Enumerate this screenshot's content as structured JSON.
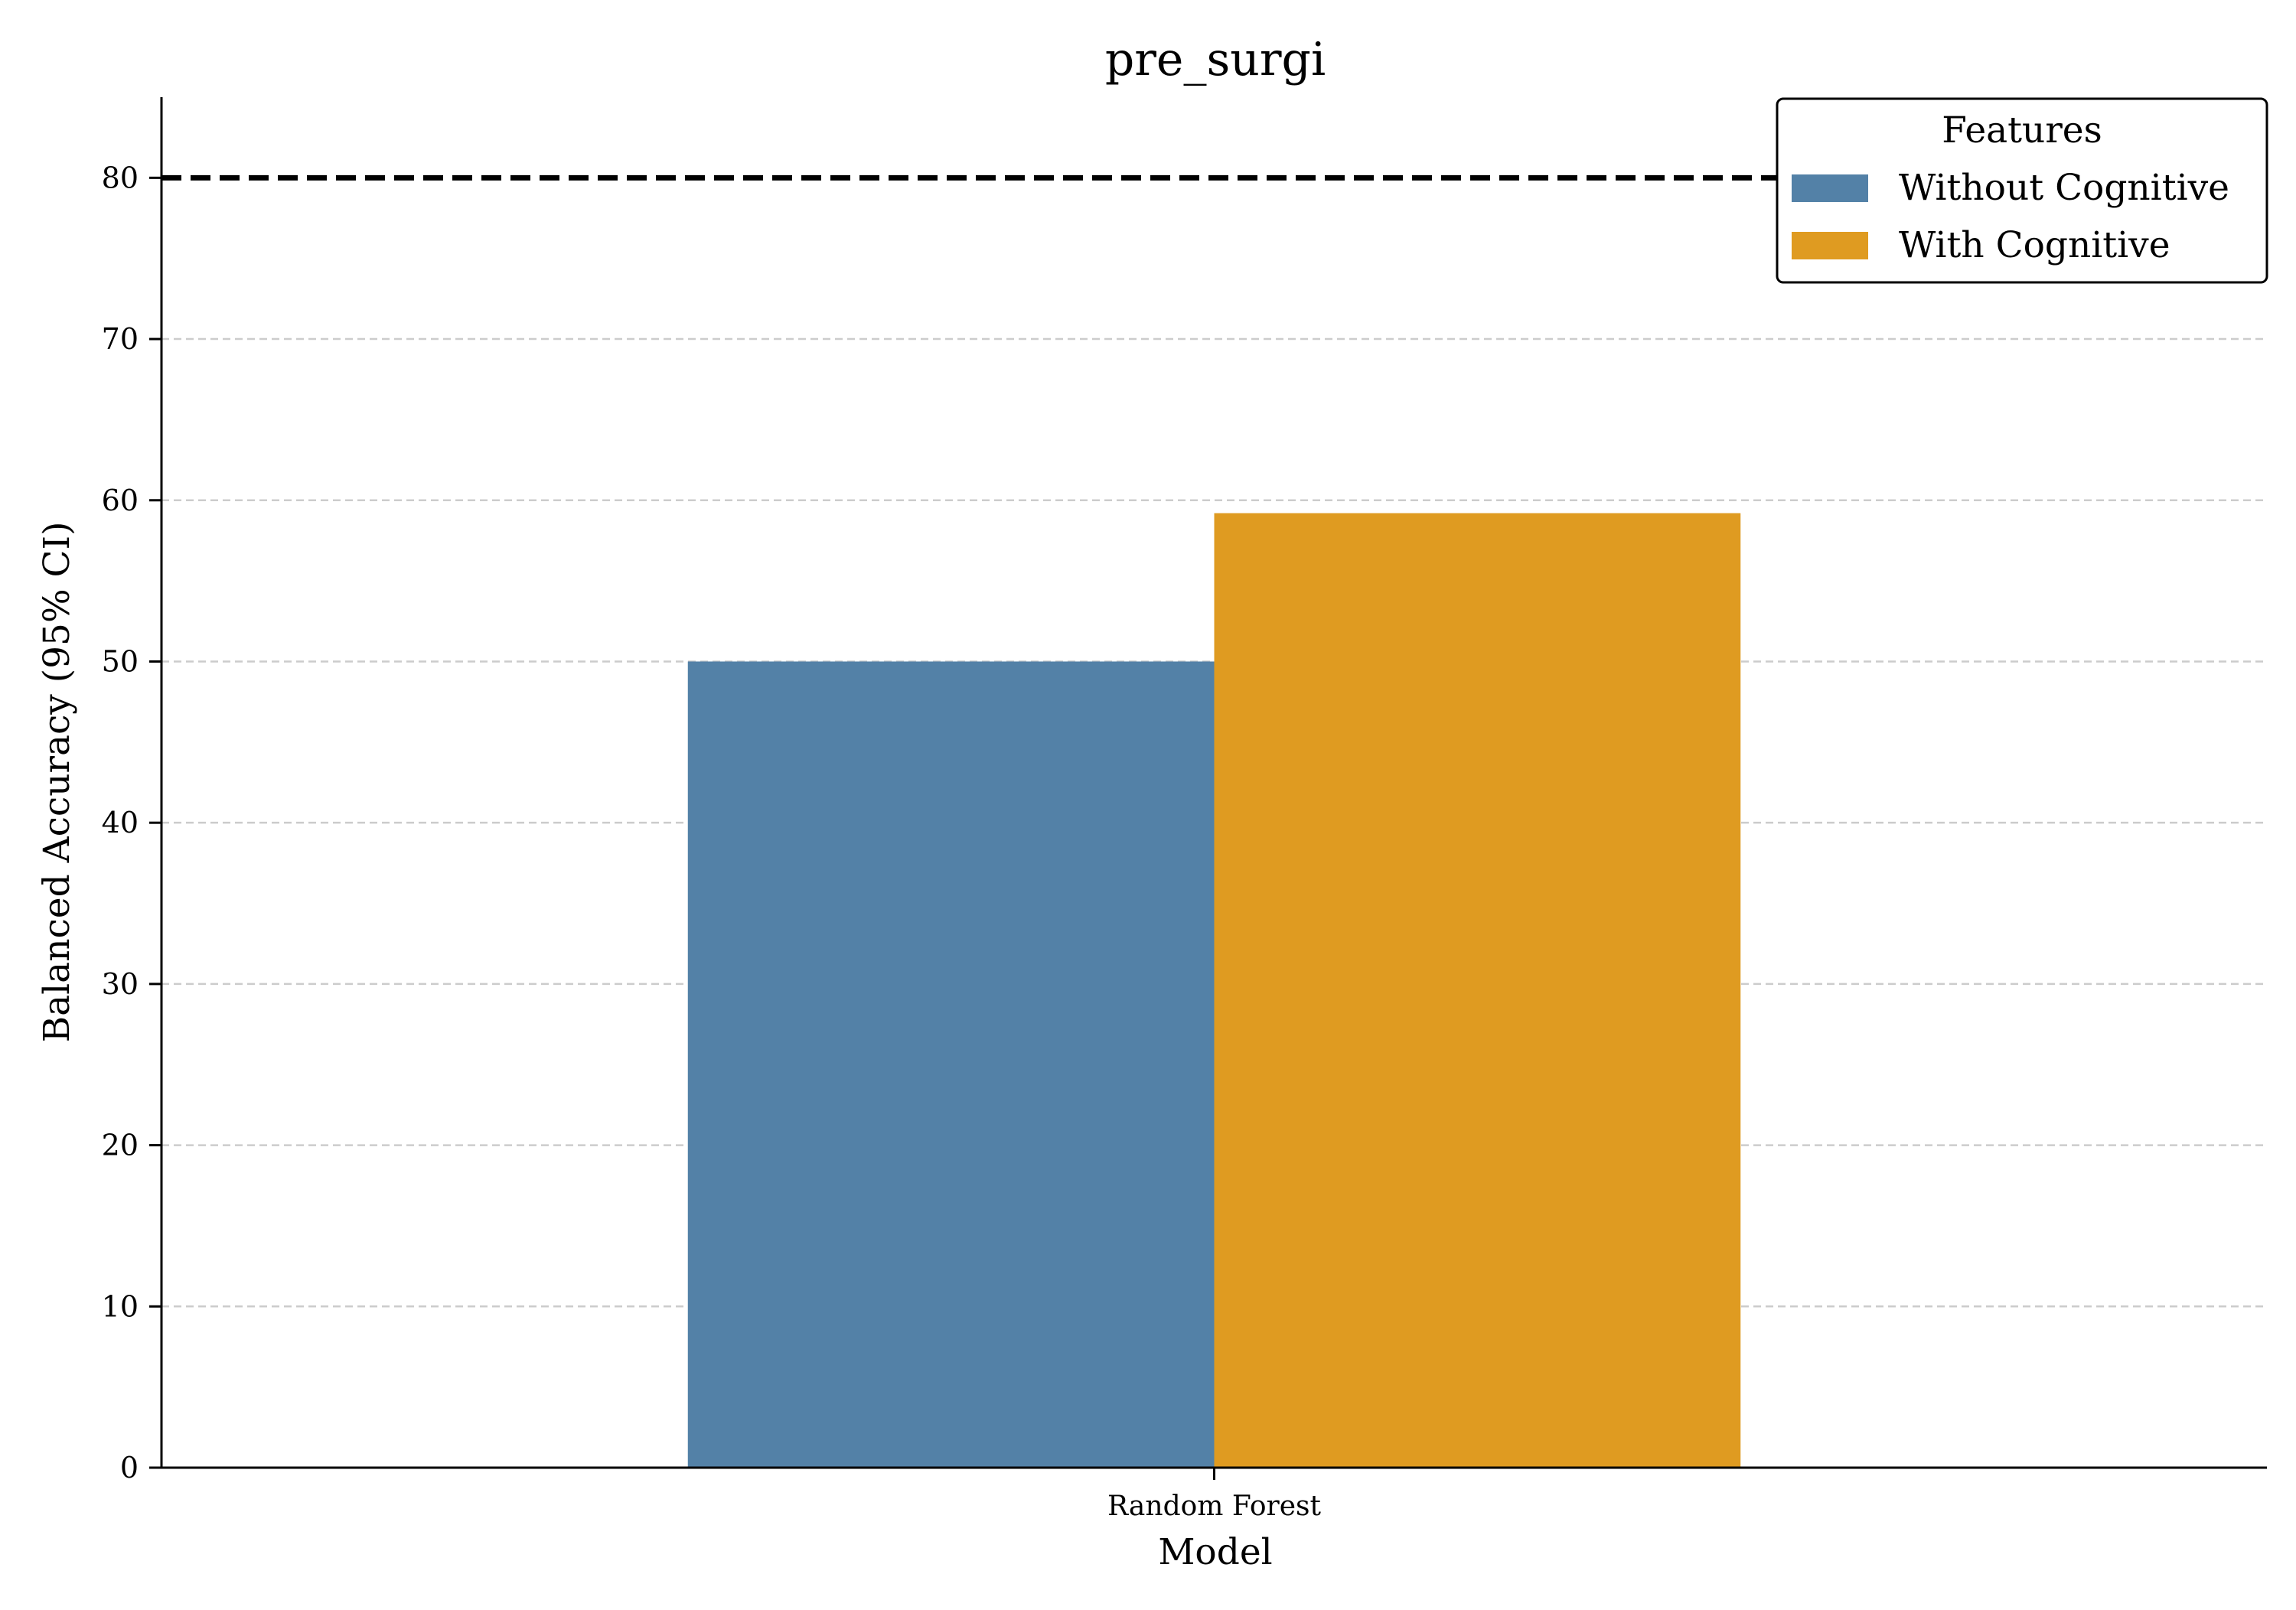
{
  "chart_data": {
    "type": "bar",
    "title": "pre_surgi",
    "xlabel": "Model",
    "ylabel": "Balanced Accuracy (95% CI)",
    "categories": [
      "Random Forest"
    ],
    "series": [
      {
        "name": "Without Cognitive",
        "values": [
          50.0
        ],
        "color": "#5381a7"
      },
      {
        "name": "With Cognitive",
        "values": [
          59.2
        ],
        "color": "#df9b21"
      }
    ],
    "ylim": [
      0,
      85
    ],
    "yticks": [
      0,
      10,
      20,
      30,
      40,
      50,
      60,
      70,
      80
    ],
    "reference_line": {
      "y": 80,
      "style": "dashed",
      "color": "#000000"
    },
    "grid": {
      "y": true,
      "style": "dashed",
      "color": "#cccccc"
    },
    "legend": {
      "title": "Features",
      "placement": "top-right"
    }
  }
}
